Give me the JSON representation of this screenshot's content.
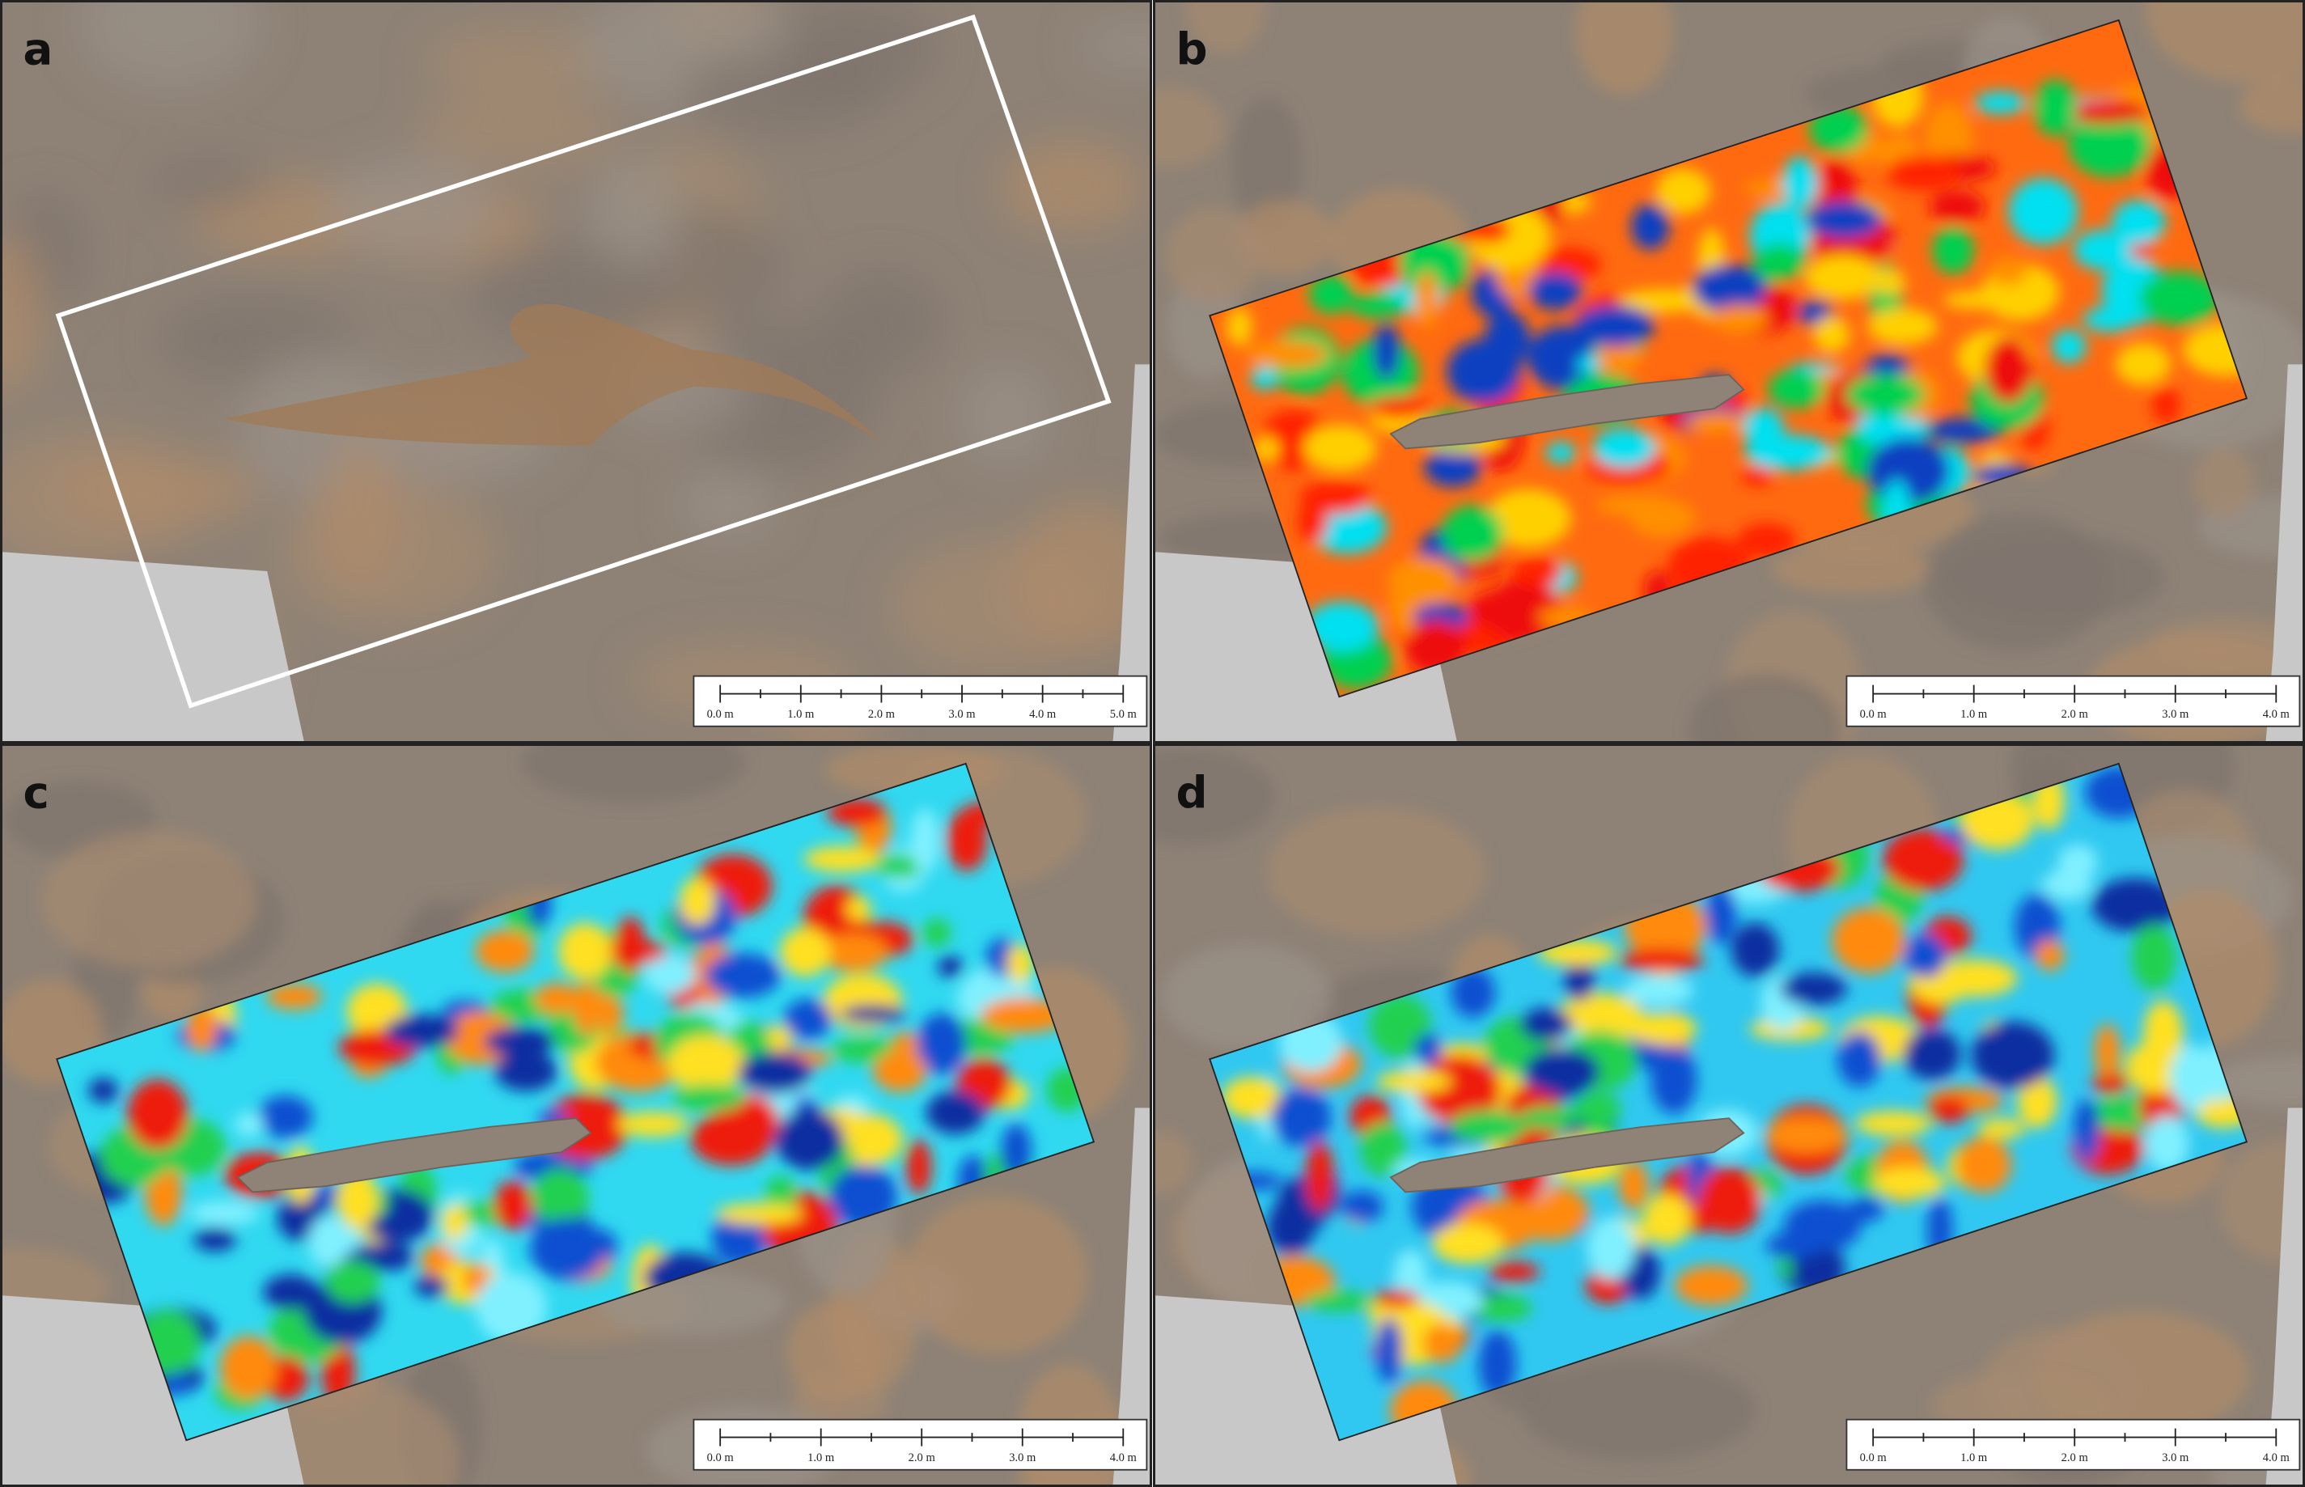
{
  "panels": [
    {
      "label": "a",
      "scale_labels": [
        "0.0 m",
        "1.0 m",
        "2.0 m",
        "3.0 m",
        "4.0 m",
        "5.0 m"
      ]
    },
    {
      "label": "b",
      "scale_labels": [
        "0.0 m",
        "1.0 m",
        "2.0 m",
        "3.0 m",
        "4.0 m"
      ]
    },
    {
      "label": "c",
      "scale_labels": [
        "0.0 m",
        "1.0 m",
        "2.0 m",
        "3.0 m",
        "4.0 m"
      ]
    },
    {
      "label": "d",
      "scale_labels": [
        "0.0 m",
        "1.0 m",
        "2.0 m",
        "3.0 m",
        "4.0 m"
      ]
    }
  ]
}
